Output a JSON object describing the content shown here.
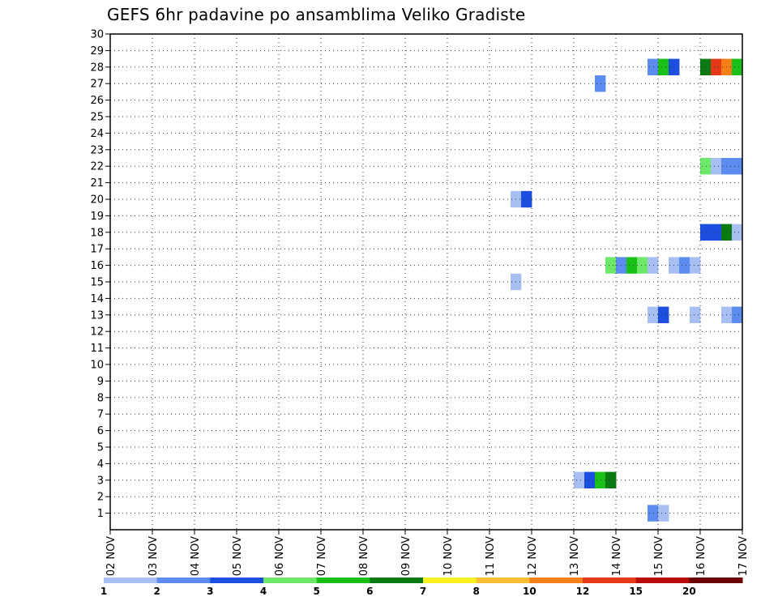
{
  "chart_data": {
    "type": "heatmap",
    "title": "GEFS 6hr padavine po ansamblima Veliko Gradiste",
    "xlabel": "",
    "ylabel": "",
    "x_tick_labels": [
      "02 NOV",
      "03 NOV",
      "04 NOV",
      "05 NOV",
      "06 NOV",
      "07 NOV",
      "08 NOV",
      "09 NOV",
      "10 NOV",
      "11 NOV",
      "12 NOV",
      "13 NOV",
      "14 NOV",
      "15 NOV",
      "16 NOV",
      "17 NOV"
    ],
    "y_tick_labels": [
      "1",
      "2",
      "3",
      "4",
      "5",
      "6",
      "7",
      "8",
      "9",
      "10",
      "11",
      "12",
      "13",
      "14",
      "15",
      "16",
      "17",
      "18",
      "19",
      "20",
      "21",
      "22",
      "23",
      "24",
      "25",
      "26",
      "27",
      "28",
      "29",
      "30"
    ],
    "ylim": [
      0,
      30
    ],
    "xlim_days": [
      0,
      15
    ],
    "grid": true,
    "color_scale": {
      "labels": [
        "1",
        "2",
        "3",
        "4",
        "5",
        "6",
        "7",
        "8",
        "10",
        "12",
        "15",
        "20"
      ],
      "colors": [
        "#a8bff4",
        "#5c8cf0",
        "#1c4ee0",
        "#6ee868",
        "#18c018",
        "#0a7a12",
        "#f8f020",
        "#f8be34",
        "#f87e18",
        "#e43818",
        "#b80c08",
        "#6a0004"
      ]
    },
    "cells": [
      {
        "member": 28,
        "day": 12.75,
        "color": "#5c8cf0"
      },
      {
        "member": 28,
        "day": 13.0,
        "color": "#18c018"
      },
      {
        "member": 28,
        "day": 13.25,
        "color": "#1c4ee0"
      },
      {
        "member": 28,
        "day": 14.0,
        "color": "#0a7a12"
      },
      {
        "member": 28,
        "day": 14.25,
        "color": "#e43818"
      },
      {
        "member": 28,
        "day": 14.5,
        "color": "#f87e18"
      },
      {
        "member": 28,
        "day": 14.75,
        "color": "#18c018"
      },
      {
        "member": 27,
        "day": 11.5,
        "color": "#5c8cf0"
      },
      {
        "member": 22,
        "day": 14.0,
        "color": "#6ee868"
      },
      {
        "member": 22,
        "day": 14.25,
        "color": "#a8bff4"
      },
      {
        "member": 22,
        "day": 14.5,
        "color": "#5c8cf0"
      },
      {
        "member": 22,
        "day": 14.75,
        "color": "#5c8cf0"
      },
      {
        "member": 20,
        "day": 9.5,
        "color": "#a8bff4"
      },
      {
        "member": 20,
        "day": 9.75,
        "color": "#1c4ee0"
      },
      {
        "member": 18,
        "day": 14.0,
        "color": "#1c4ee0"
      },
      {
        "member": 18,
        "day": 14.25,
        "color": "#1c4ee0"
      },
      {
        "member": 18,
        "day": 14.5,
        "color": "#0a7a12"
      },
      {
        "member": 18,
        "day": 14.75,
        "color": "#a8bff4"
      },
      {
        "member": 16,
        "day": 11.75,
        "color": "#6ee868"
      },
      {
        "member": 16,
        "day": 12.0,
        "color": "#5c8cf0"
      },
      {
        "member": 16,
        "day": 12.25,
        "color": "#18c018"
      },
      {
        "member": 16,
        "day": 12.5,
        "color": "#6ee868"
      },
      {
        "member": 16,
        "day": 12.75,
        "color": "#a8bff4"
      },
      {
        "member": 16,
        "day": 13.25,
        "color": "#a8bff4"
      },
      {
        "member": 16,
        "day": 13.5,
        "color": "#5c8cf0"
      },
      {
        "member": 16,
        "day": 13.75,
        "color": "#a8bff4"
      },
      {
        "member": 15,
        "day": 9.5,
        "color": "#a8bff4"
      },
      {
        "member": 13,
        "day": 12.75,
        "color": "#a8bff4"
      },
      {
        "member": 13,
        "day": 13.0,
        "color": "#1c4ee0"
      },
      {
        "member": 13,
        "day": 13.75,
        "color": "#a8bff4"
      },
      {
        "member": 13,
        "day": 14.5,
        "color": "#a8bff4"
      },
      {
        "member": 13,
        "day": 14.75,
        "color": "#5c8cf0"
      },
      {
        "member": 3,
        "day": 11.0,
        "color": "#a8bff4"
      },
      {
        "member": 3,
        "day": 11.25,
        "color": "#1c4ee0"
      },
      {
        "member": 3,
        "day": 11.5,
        "color": "#18c018"
      },
      {
        "member": 3,
        "day": 11.75,
        "color": "#0a7a12"
      },
      {
        "member": 1,
        "day": 12.75,
        "color": "#5c8cf0"
      },
      {
        "member": 1,
        "day": 13.0,
        "color": "#a8bff4"
      }
    ]
  }
}
